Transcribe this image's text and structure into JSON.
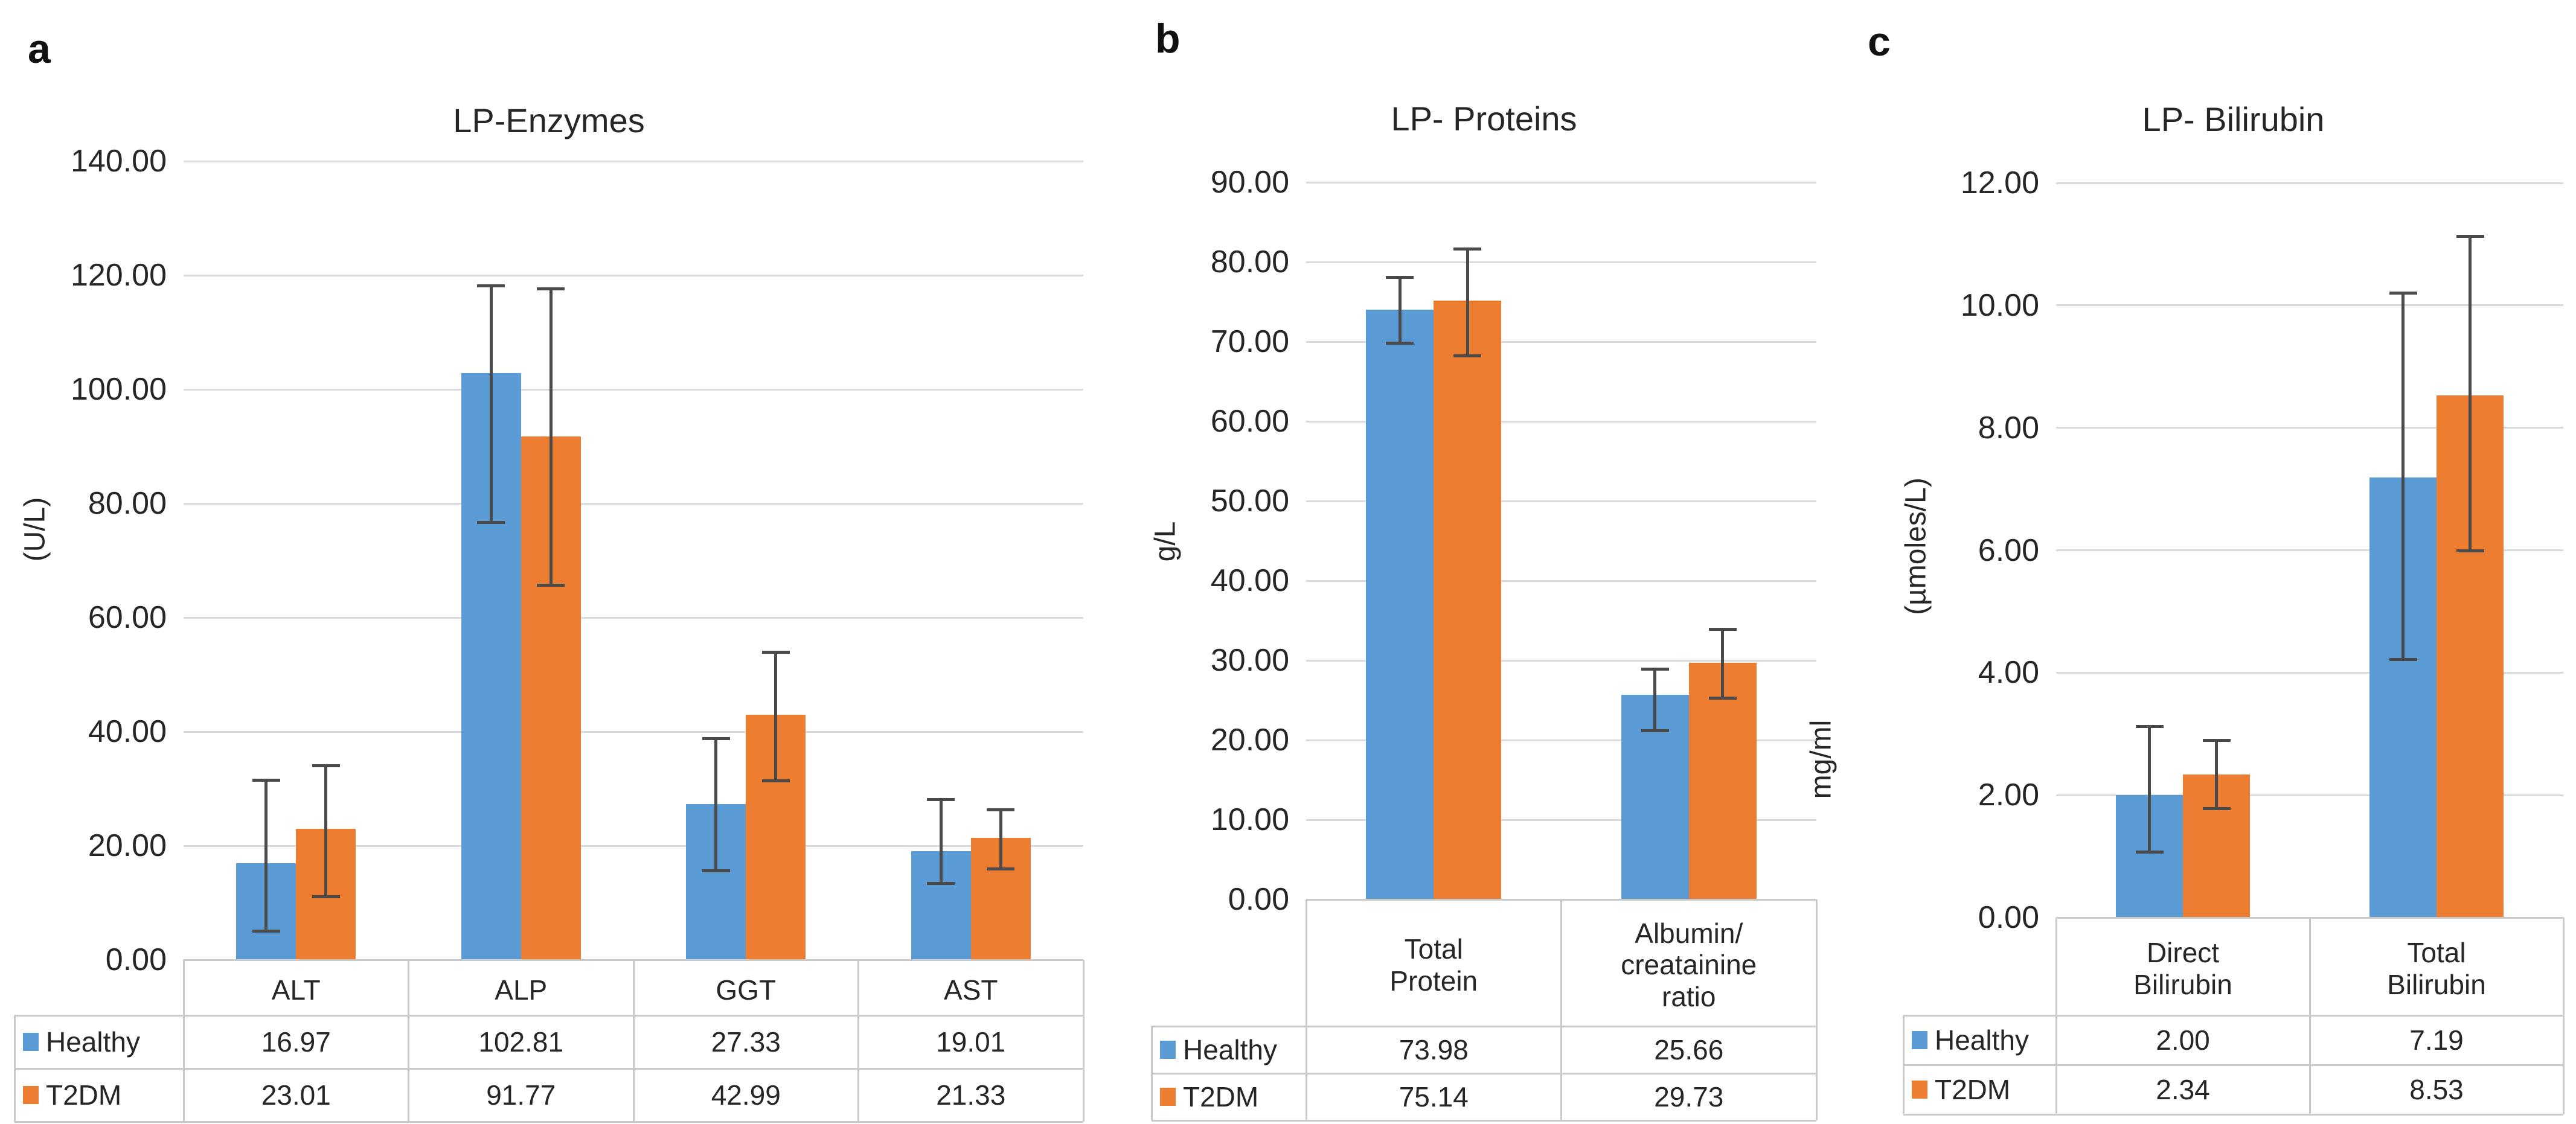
{
  "figure": {
    "colors": {
      "healthy": "#5B9BD5",
      "t2dm": "#ED7D31",
      "error_bar": "#4A4A4A",
      "gridline": "#DADADA",
      "table_border": "#C9C9C9",
      "text": "#262626"
    }
  },
  "chart_data": [
    {
      "id": "a",
      "panel_label": "a",
      "type": "bar",
      "title": "LP-Enzymes",
      "ylabel": "(U/L)",
      "ylabel_right": "",
      "ylim": [
        0,
        140
      ],
      "ytick_step": 20,
      "grid": "on",
      "legend_position": "table-left",
      "categories": [
        "ALT",
        "ALP",
        "GGT",
        "AST"
      ],
      "category_header_lines": [
        [
          "ALT"
        ],
        [
          "ALP"
        ],
        [
          "GGT"
        ],
        [
          "AST"
        ]
      ],
      "series": [
        {
          "name": "Healthy",
          "color": "#5B9BD5",
          "values": [
            16.97,
            102.81,
            27.33,
            19.01
          ],
          "display": [
            "16.97",
            "102.81",
            "27.33",
            "19.01"
          ],
          "error_low": [
            5.0,
            76.7,
            15.6,
            13.4
          ],
          "error_high": [
            31.5,
            118.2,
            38.8,
            28.1
          ]
        },
        {
          "name": "T2DM",
          "color": "#ED7D31",
          "values": [
            23.01,
            91.77,
            42.99,
            21.33
          ],
          "display": [
            "23.01",
            "91.77",
            "42.99",
            "21.33"
          ],
          "error_low": [
            11.1,
            65.7,
            31.4,
            15.9
          ],
          "error_high": [
            34.0,
            117.6,
            53.9,
            26.3
          ]
        }
      ]
    },
    {
      "id": "b",
      "panel_label": "b",
      "type": "bar",
      "title": "LP- Proteins",
      "ylabel": "g/L",
      "ylabel_right": "mg/ml",
      "ylim": [
        0,
        90
      ],
      "ytick_step": 10,
      "grid": "on",
      "legend_position": "table-left",
      "categories": [
        "Total Protein",
        "Albumin/ creatainine ratio"
      ],
      "category_header_lines": [
        [
          "Total",
          "Protein"
        ],
        [
          "Albumin/",
          "creatainine",
          "ratio"
        ]
      ],
      "series": [
        {
          "name": "Healthy",
          "color": "#5B9BD5",
          "values": [
            73.98,
            25.66
          ],
          "display": [
            "73.98",
            "25.66"
          ],
          "error_low": [
            69.8,
            21.2
          ],
          "error_high": [
            78.1,
            28.9
          ]
        },
        {
          "name": "T2DM",
          "color": "#ED7D31",
          "values": [
            75.14,
            29.73
          ],
          "display": [
            "75.14",
            "29.73"
          ],
          "error_low": [
            68.2,
            25.3
          ],
          "error_high": [
            81.6,
            33.9
          ]
        }
      ]
    },
    {
      "id": "c",
      "panel_label": "c",
      "type": "bar",
      "title": "LP- Bilirubin",
      "ylabel": "(µmoles/L)",
      "ylabel_right": "",
      "ylim": [
        0,
        12
      ],
      "ytick_step": 2,
      "grid": "on",
      "legend_position": "table-left",
      "categories": [
        "Direct Bilirubin",
        "Total Bilirubin"
      ],
      "category_header_lines": [
        [
          "Direct",
          "Bilirubin"
        ],
        [
          "Total",
          "Bilirubin"
        ]
      ],
      "series": [
        {
          "name": "Healthy",
          "color": "#5B9BD5",
          "values": [
            2.0,
            7.19
          ],
          "display": [
            "2.00",
            "7.19"
          ],
          "error_low": [
            1.07,
            4.22
          ],
          "error_high": [
            3.12,
            10.2
          ]
        },
        {
          "name": "T2DM",
          "color": "#ED7D31",
          "values": [
            2.34,
            8.53
          ],
          "display": [
            "2.34",
            "8.53"
          ],
          "error_low": [
            1.78,
            5.99
          ],
          "error_high": [
            2.89,
            11.13
          ]
        }
      ]
    }
  ]
}
